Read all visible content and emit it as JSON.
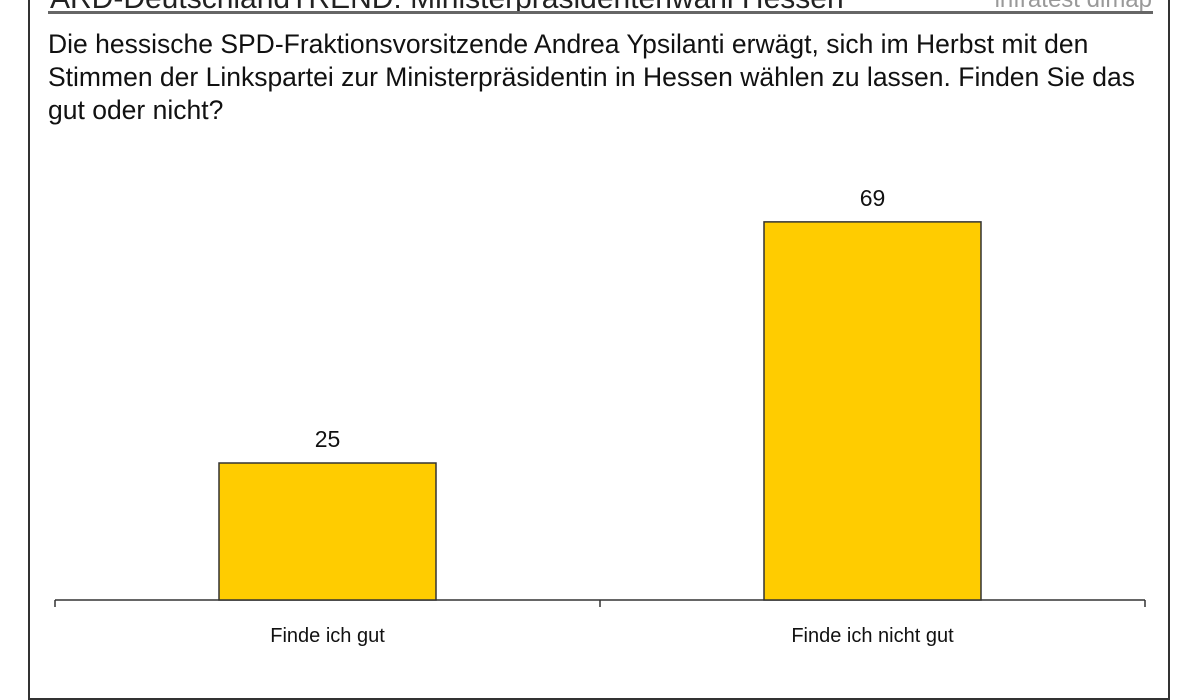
{
  "header": {
    "title": "ARD-DeutschlandTREND: Ministerpräsidentenwahl Hessen",
    "source": "infratest dimap"
  },
  "question": "Die hessische SPD-Fraktionsvorsitzende Andrea Ypsilanti erwägt, sich im Herbst mit den Stimmen der Linkspartei zur Ministerpräsidentin in Hessen wählen zu lassen. Finden Sie das gut oder nicht?",
  "chart_data": {
    "type": "bar",
    "categories": [
      "Finde ich gut",
      "Finde ich nicht gut"
    ],
    "values": [
      25,
      69
    ],
    "title": "",
    "xlabel": "",
    "ylabel": "",
    "ylim": [
      0,
      100
    ],
    "grid": false,
    "bar_color": "#FFCC00",
    "bar_edge": "#333333"
  }
}
